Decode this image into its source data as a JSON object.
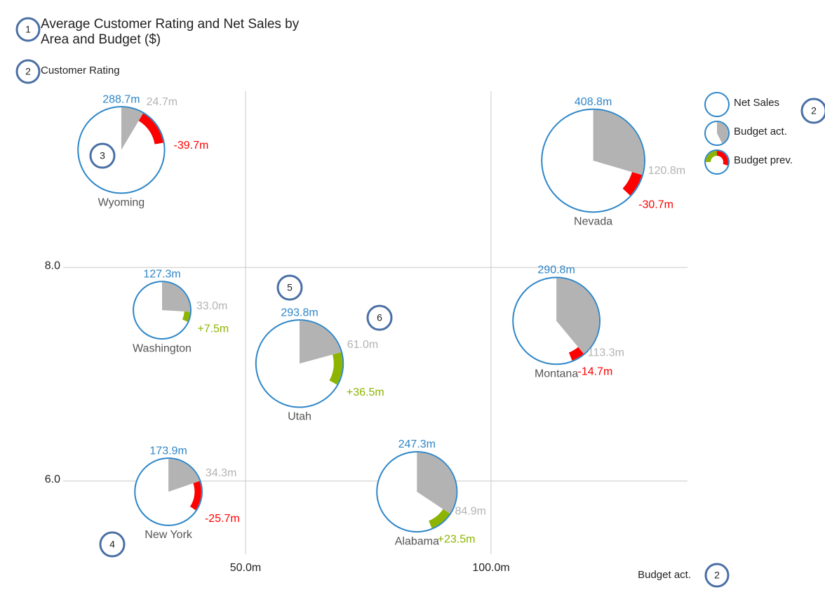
{
  "chart_data": {
    "type": "bubble-pie",
    "title": "Average Customer Rating and Net Sales by Area and Budget ($)",
    "y_label": "Customer Rating",
    "x_label": "Budget act.",
    "categories": [
      "Wyoming",
      "Nevada",
      "Washington",
      "Utah",
      "Montana",
      "New York",
      "Alabama"
    ],
    "y": [
      9.1,
      9.0,
      7.6,
      7.1,
      7.5,
      5.9,
      5.9
    ],
    "series": [
      {
        "name": "Net Sales",
        "color": "#2e86c8",
        "values": [
          288.7,
          408.8,
          127.3,
          293.8,
          290.8,
          173.9,
          247.3
        ],
        "value_labels": [
          "288.7m",
          "408.8m",
          "127.3m",
          "293.8m",
          "290.8m",
          "173.9m",
          "247.3m"
        ]
      },
      {
        "name": "Budget act.",
        "color": "#b3b3b3",
        "values": [
          24.7,
          120.8,
          33.0,
          61.0,
          113.3,
          34.3,
          84.9
        ],
        "value_labels": [
          "24.7m",
          "120.8m",
          "33.0m",
          "61.0m",
          "113.3m",
          "34.3m",
          "84.9m"
        ]
      },
      {
        "name": "Budget prev.",
        "color_positive": "#8cb400",
        "color_negative": "#ff0000",
        "values": [
          -39.7,
          -30.7,
          7.5,
          36.5,
          -14.7,
          -25.7,
          23.5
        ],
        "value_labels": [
          "-39.7m",
          "-30.7m",
          "+7.5m",
          "+36.5m",
          "-14.7m",
          "-25.7m",
          "+23.5m"
        ]
      }
    ],
    "xlim": [
      10,
      140
    ],
    "ylim": [
      5.25,
      9.65
    ],
    "xticks": [
      {
        "value": 50,
        "label": "50.0m"
      },
      {
        "value": 100,
        "label": "100.0m"
      }
    ],
    "yticks": [
      {
        "value": 6,
        "label": "6.0"
      },
      {
        "value": 8,
        "label": "8.0"
      }
    ],
    "grid": true,
    "markers": [
      "1",
      "2",
      "3",
      "4",
      "5",
      "6",
      "2",
      "2"
    ]
  }
}
